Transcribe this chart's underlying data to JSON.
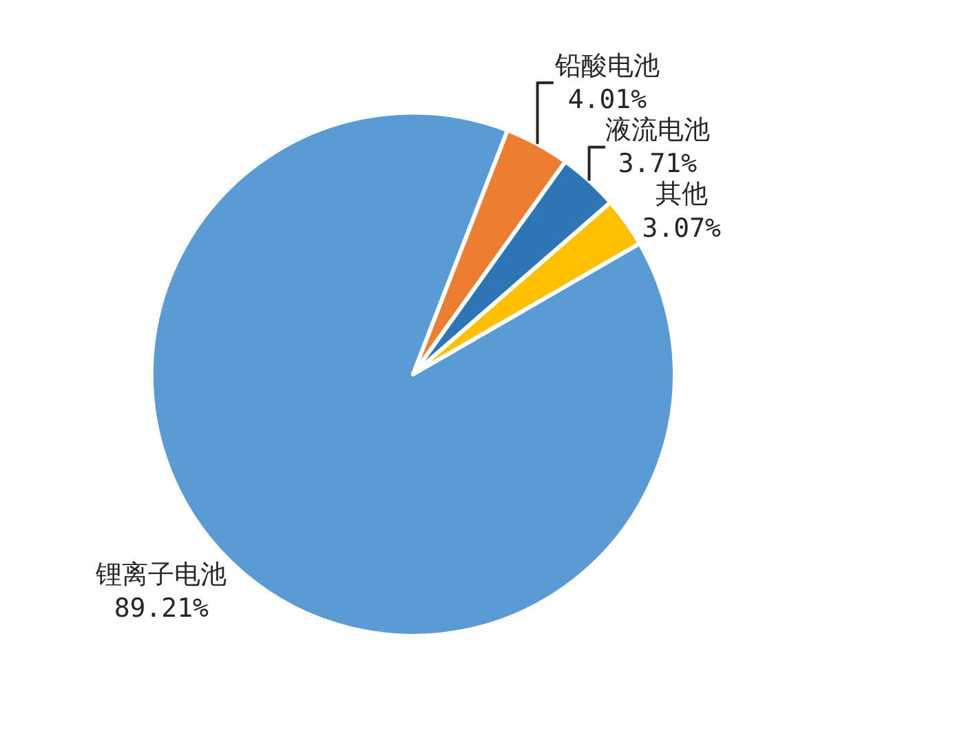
{
  "chart_data": {
    "type": "pie",
    "categories": [
      "锂离子电池",
      "铅酸电池",
      "液流电池",
      "其他"
    ],
    "values": [
      89.21,
      4.01,
      3.71,
      3.07
    ],
    "colors": [
      "#5b9bd5",
      "#ed7d31",
      "#2e75b6",
      "#ffc000"
    ],
    "value_labels": [
      "89.21%",
      "4.01%",
      "3.71%",
      "3.07%"
    ],
    "legend": false
  }
}
